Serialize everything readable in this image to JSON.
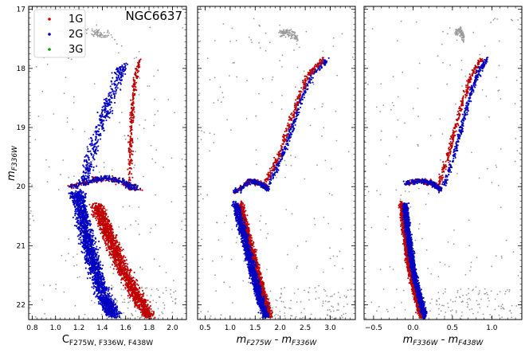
{
  "chart_data": [
    {
      "type": "scatter",
      "title": "NGC6637",
      "xlabel": "C_F275W,F336W,F438W",
      "xlabel_main": "C",
      "xlabel_sub": "F275W, F336W, F438W",
      "ylabel": "m_F336W",
      "ylabel_main": "m",
      "ylabel_sub": "F336W",
      "xlim": [
        0.77,
        2.12
      ],
      "ylim": [
        22.25,
        16.95
      ],
      "y_inverted": true,
      "xticks": [
        0.8,
        1.0,
        1.2,
        1.4,
        1.6,
        1.8,
        2.0
      ],
      "xtick_labels": [
        "0.8",
        "1.0",
        "1.2",
        "1.4",
        "1.6",
        "1.8",
        "2.0"
      ],
      "yticks": [
        17,
        18,
        19,
        20,
        21,
        22
      ],
      "ytick_labels": [
        "17",
        "18",
        "19",
        "20",
        "21",
        "22"
      ],
      "legend": {
        "position": "top-left",
        "entries": [
          "1G",
          "2G",
          "3G"
        ]
      },
      "series": [
        {
          "name": "1G",
          "color": "#c00000",
          "kind": "population"
        },
        {
          "name": "2G",
          "color": "#0000c0",
          "kind": "population"
        },
        {
          "name": "3G",
          "color": "#00a000",
          "kind": "population"
        },
        {
          "color": "#9a9a9a",
          "kind": "field"
        }
      ],
      "features": {
        "rgb_2g": [
          [
            1.25,
            19.9
          ],
          [
            1.3,
            19.5
          ],
          [
            1.38,
            19.0
          ],
          [
            1.45,
            18.6
          ],
          [
            1.52,
            18.2
          ],
          [
            1.58,
            17.95
          ]
        ],
        "rgb_1g": [
          [
            1.63,
            20.05
          ],
          [
            1.64,
            19.5
          ],
          [
            1.65,
            19.0
          ],
          [
            1.66,
            18.6
          ],
          [
            1.68,
            18.2
          ],
          [
            1.72,
            17.85
          ]
        ],
        "sgb": [
          [
            1.15,
            20.0
          ],
          [
            1.3,
            19.9
          ],
          [
            1.45,
            19.85
          ],
          [
            1.6,
            19.95
          ],
          [
            1.7,
            20.05
          ]
        ],
        "ms_2g": [
          [
            1.18,
            20.1
          ],
          [
            1.25,
            20.7
          ],
          [
            1.32,
            21.3
          ],
          [
            1.42,
            21.9
          ],
          [
            1.5,
            22.2
          ]
        ],
        "ms_1g": [
          [
            1.35,
            20.3
          ],
          [
            1.45,
            20.8
          ],
          [
            1.55,
            21.3
          ],
          [
            1.68,
            21.8
          ],
          [
            1.8,
            22.2
          ]
        ],
        "hb": [
          [
            1.08,
            17.4
          ],
          [
            1.2,
            17.35
          ],
          [
            1.35,
            17.4
          ],
          [
            1.45,
            17.45
          ]
        ]
      }
    },
    {
      "type": "scatter",
      "xlabel": "m_F275W - m_F336W",
      "xlabel_parts": [
        {
          "main": "m",
          "sub": "F275W"
        },
        {
          "main": "m",
          "sub": "F336W"
        }
      ],
      "xlim": [
        0.35,
        3.5
      ],
      "ylim": [
        22.25,
        16.95
      ],
      "y_inverted": true,
      "xticks": [
        0.5,
        1.0,
        1.5,
        2.0,
        2.5,
        3.0
      ],
      "xtick_labels": [
        "0.5",
        "1.0",
        "1.5",
        "2.0",
        "2.5",
        "3.0"
      ],
      "series": [
        {
          "name": "1G",
          "color": "#c00000"
        },
        {
          "name": "2G",
          "color": "#0000c0"
        },
        {
          "color": "#9a9a9a"
        }
      ],
      "features": {
        "rgb": [
          [
            1.7,
            20.0
          ],
          [
            2.0,
            19.5
          ],
          [
            2.2,
            19.0
          ],
          [
            2.4,
            18.5
          ],
          [
            2.6,
            18.1
          ],
          [
            2.9,
            17.85
          ]
        ],
        "sgb": [
          [
            1.1,
            20.1
          ],
          [
            1.4,
            19.9
          ],
          [
            1.6,
            19.95
          ],
          [
            1.75,
            20.05
          ]
        ],
        "ms": [
          [
            1.15,
            20.3
          ],
          [
            1.3,
            20.8
          ],
          [
            1.45,
            21.3
          ],
          [
            1.6,
            21.8
          ],
          [
            1.75,
            22.2
          ]
        ],
        "hb": [
          [
            2.0,
            17.4
          ],
          [
            2.2,
            17.4
          ],
          [
            2.35,
            17.5
          ]
        ]
      }
    },
    {
      "type": "scatter",
      "xlabel": "m_F336W - m_F438W",
      "xlabel_parts": [
        {
          "main": "m",
          "sub": "F336W"
        },
        {
          "main": "m",
          "sub": "F438W"
        }
      ],
      "xlim": [
        -0.62,
        1.38
      ],
      "ylim": [
        22.25,
        16.95
      ],
      "y_inverted": true,
      "xticks": [
        -0.5,
        0.0,
        0.5,
        1.0
      ],
      "xtick_labels": [
        "−0.5",
        "0.0",
        "0.5",
        "1.0"
      ],
      "series": [
        {
          "name": "1G",
          "color": "#c00000"
        },
        {
          "name": "2G",
          "color": "#0000c0"
        },
        {
          "color": "#9a9a9a"
        }
      ],
      "features": {
        "rgb": [
          [
            0.35,
            20.0
          ],
          [
            0.48,
            19.5
          ],
          [
            0.58,
            19.0
          ],
          [
            0.68,
            18.5
          ],
          [
            0.78,
            18.1
          ],
          [
            0.9,
            17.85
          ]
        ],
        "sgb": [
          [
            -0.1,
            19.95
          ],
          [
            0.1,
            19.9
          ],
          [
            0.25,
            19.95
          ],
          [
            0.35,
            20.05
          ]
        ],
        "ms": [
          [
            -0.12,
            20.3
          ],
          [
            -0.08,
            20.8
          ],
          [
            -0.03,
            21.3
          ],
          [
            0.05,
            21.8
          ],
          [
            0.13,
            22.2
          ]
        ],
        "hb": [
          [
            0.55,
            17.4
          ],
          [
            0.6,
            17.35
          ],
          [
            0.65,
            17.5
          ]
        ]
      }
    }
  ]
}
